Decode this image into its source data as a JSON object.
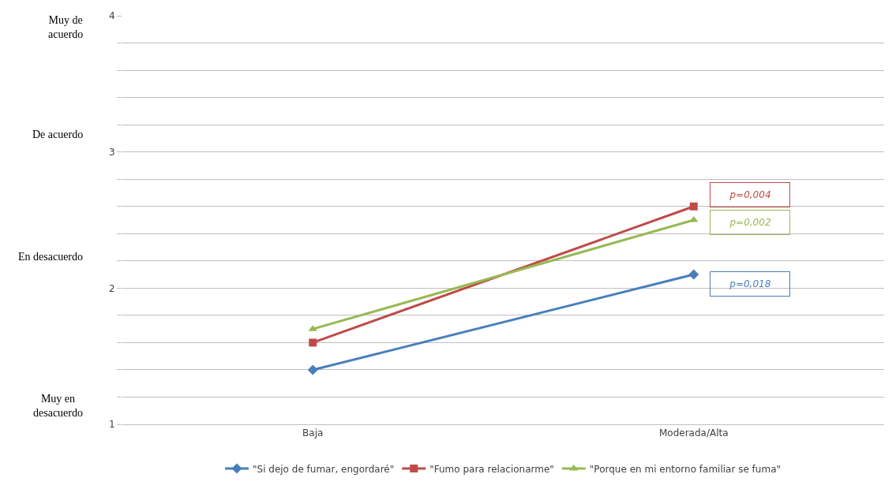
{
  "chart_data": {
    "type": "line",
    "categories": [
      "Baja",
      "Moderada/Alta"
    ],
    "series": [
      {
        "name": "\"Si dejo de fumar, engordaré\"",
        "color": "#4a7ebb",
        "values": [
          1.4,
          2.1
        ],
        "marker": "diamond"
      },
      {
        "name": "\"Fumo para relacionarme\"",
        "color": "#be4b48",
        "values": [
          1.6,
          2.6
        ],
        "marker": "square"
      },
      {
        "name": "\"Porque en mi entorno familiar se fuma\"",
        "color": "#98b954",
        "values": [
          1.7,
          2.5
        ],
        "marker": "triangle"
      }
    ],
    "ylim": [
      1,
      4
    ],
    "yticks": [
      1,
      {
        "value": 1.2,
        "label": null
      },
      {
        "value": 1.4,
        "label": null
      },
      {
        "value": 1.6,
        "label": null
      },
      {
        "value": 1.8,
        "label": null
      },
      2,
      {
        "value": 2.2,
        "label": null
      },
      {
        "value": 2.4,
        "label": null
      },
      {
        "value": 2.6,
        "label": null
      },
      {
        "value": 2.8,
        "label": null
      },
      3,
      {
        "value": 3.2,
        "label": null
      },
      {
        "value": 3.4,
        "label": null
      },
      {
        "value": 3.6,
        "label": null
      },
      {
        "value": 3.8,
        "label": null
      },
      4
    ],
    "grid": "y",
    "legend": "bottom",
    "line_style": "solid",
    "annotations": [
      "Muy de\nacuerdo",
      "De acuerdo",
      "En desacuerdo",
      "Muy en\ndesacuerdo",
      "p=0,004",
      "p=0,002",
      "p=0,018"
    ]
  }
}
